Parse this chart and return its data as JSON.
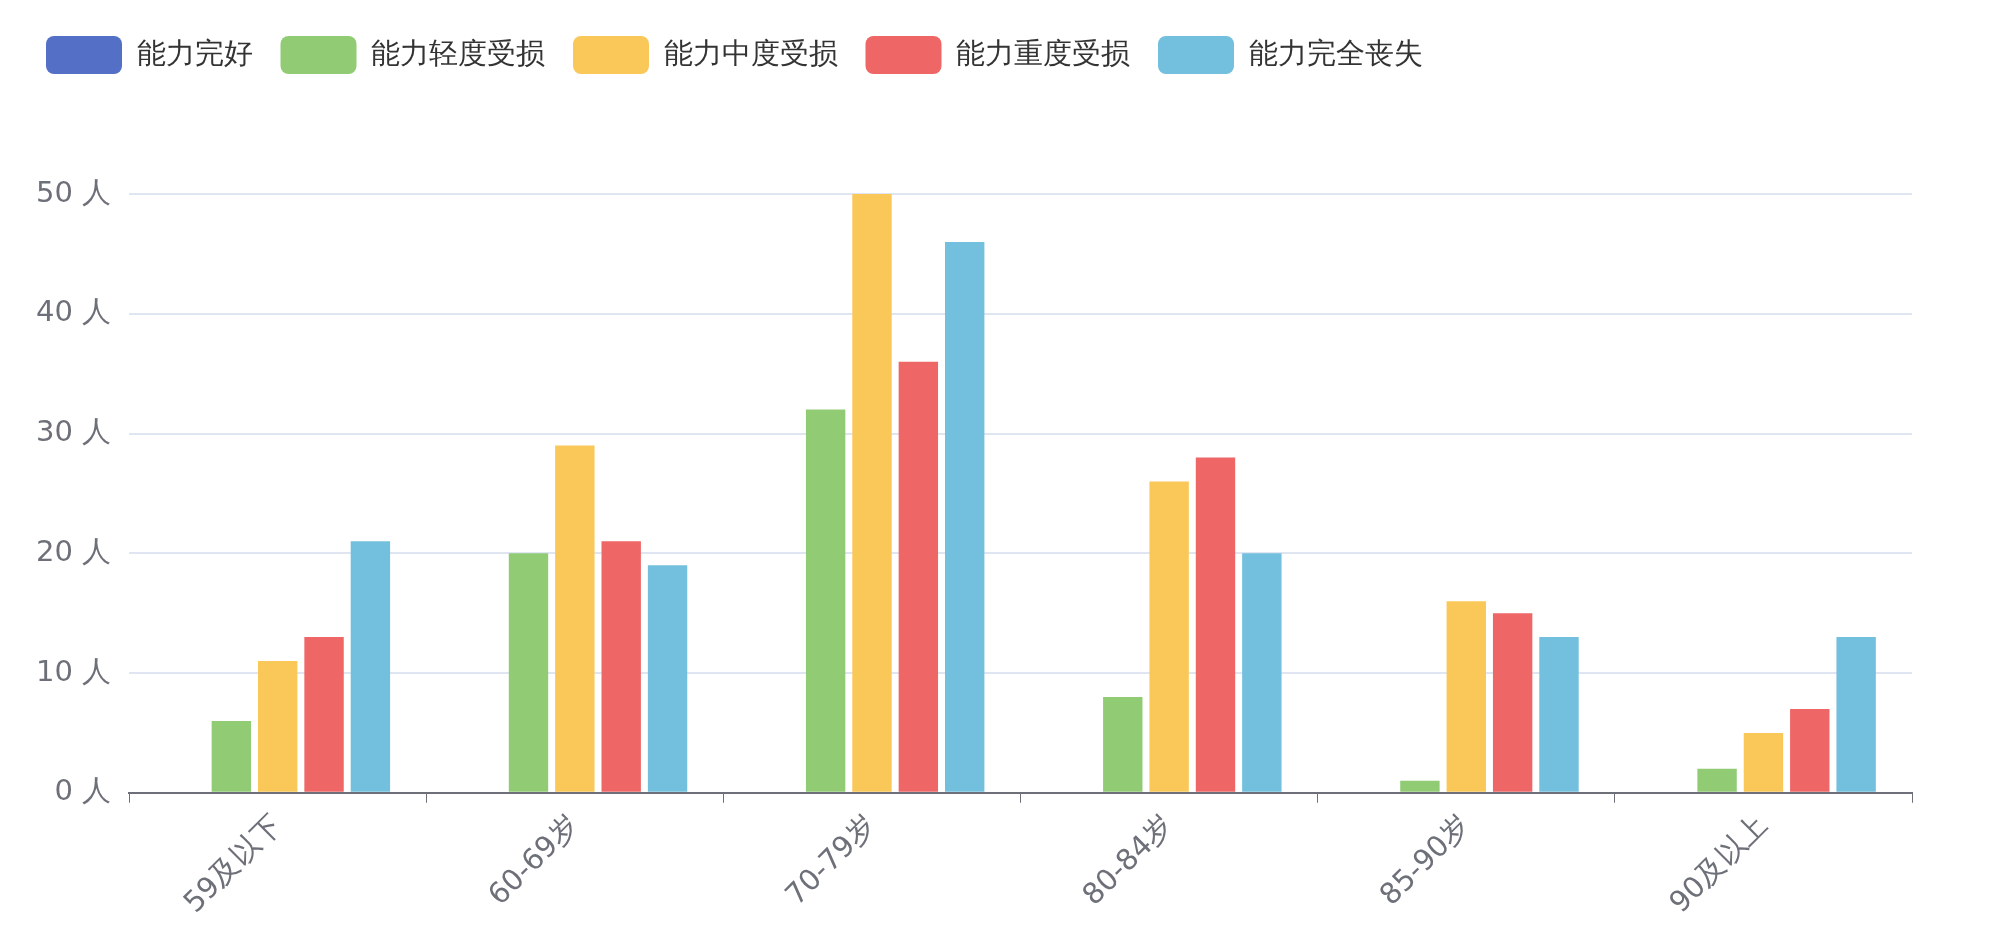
{
  "chart_data": {
    "type": "bar",
    "categories": [
      "59及以下",
      "60-69岁",
      "70-79岁",
      "80-84岁",
      "85-90岁",
      "90及以上"
    ],
    "series": [
      {
        "name": "能力完好",
        "color": "#5470c6",
        "values": [
          0,
          0,
          0,
          0,
          0,
          0
        ]
      },
      {
        "name": "能力轻度受损",
        "color": "#91cc75",
        "values": [
          6,
          20,
          32,
          8,
          1,
          2
        ]
      },
      {
        "name": "能力中度受损",
        "color": "#fac858",
        "values": [
          11,
          29,
          50,
          26,
          16,
          5
        ]
      },
      {
        "name": "能力重度受损",
        "color": "#ee6666",
        "values": [
          13,
          21,
          36,
          28,
          15,
          7
        ]
      },
      {
        "name": "能力完全丧失",
        "color": "#73c0de",
        "values": [
          21,
          19,
          46,
          20,
          13,
          13
        ]
      }
    ],
    "ylim": [
      0,
      50
    ],
    "yticks": [
      {
        "value": 0,
        "label": "0 人"
      },
      {
        "value": 10,
        "label": "10 人"
      },
      {
        "value": 20,
        "label": "20 人"
      },
      {
        "value": 30,
        "label": "30 人"
      },
      {
        "value": 40,
        "label": "40 人"
      },
      {
        "value": 50,
        "label": "50 人"
      }
    ],
    "grid": "y",
    "legend": "top left"
  }
}
